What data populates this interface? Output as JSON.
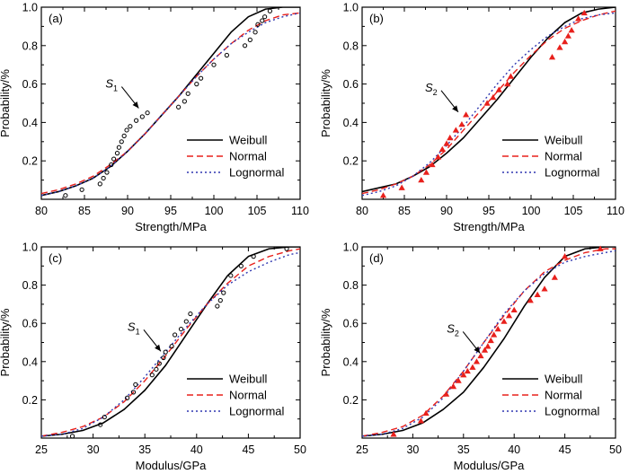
{
  "chart_data": [
    {
      "type": "line",
      "panel_label": "(a)",
      "xlabel": "Strength/MPa",
      "ylabel": "Probability/%",
      "xlim": [
        80,
        110
      ],
      "ylim": [
        0,
        1.0
      ],
      "x_ticks": [
        80,
        85,
        90,
        95,
        100,
        105,
        110
      ],
      "y_ticks": [
        0.2,
        0.4,
        0.6,
        0.8,
        1.0
      ],
      "legend_position": "bottom-right",
      "annotation": {
        "text": "S",
        "subscript": "1",
        "x": 91.6,
        "y": 0.46
      },
      "series": [
        {
          "name": "Weibull",
          "color": "#000000",
          "style": "solid",
          "x": [
            80,
            82,
            84,
            86,
            88,
            90,
            92,
            94,
            96,
            98,
            100,
            102,
            104,
            106,
            108,
            110
          ],
          "y": [
            0.02,
            0.04,
            0.07,
            0.11,
            0.17,
            0.25,
            0.34,
            0.44,
            0.54,
            0.65,
            0.76,
            0.87,
            0.95,
            0.99,
            1.0,
            1.0
          ]
        },
        {
          "name": "Normal",
          "color": "#e8201c",
          "style": "dashed",
          "x": [
            80,
            82,
            84,
            86,
            88,
            90,
            92,
            94,
            96,
            98,
            100,
            102,
            104,
            106,
            108,
            110
          ],
          "y": [
            0.03,
            0.05,
            0.08,
            0.12,
            0.18,
            0.25,
            0.34,
            0.44,
            0.54,
            0.64,
            0.73,
            0.81,
            0.88,
            0.93,
            0.96,
            0.97
          ]
        },
        {
          "name": "Lognormal",
          "color": "#2f37b0",
          "style": "dotted",
          "x": [
            80,
            82,
            84,
            86,
            88,
            90,
            92,
            94,
            96,
            98,
            100,
            102,
            104,
            106,
            108,
            110
          ],
          "y": [
            0.02,
            0.04,
            0.07,
            0.11,
            0.17,
            0.25,
            0.34,
            0.44,
            0.54,
            0.64,
            0.73,
            0.81,
            0.87,
            0.92,
            0.95,
            0.97
          ]
        }
      ],
      "points": {
        "marker": "circle",
        "color": "#000000",
        "x": [
          82.8,
          84.7,
          86.8,
          87.2,
          87.6,
          88.1,
          88.4,
          88.8,
          89.0,
          89.3,
          89.6,
          89.9,
          90.3,
          91.0,
          91.7,
          92.3,
          95.9,
          96.6,
          97.0,
          98.0,
          98.5,
          100.0,
          101.5,
          103.6,
          104.2,
          104.8,
          105.1,
          105.6,
          105.9,
          106.5
        ],
        "y": [
          0.02,
          0.05,
          0.08,
          0.11,
          0.14,
          0.18,
          0.21,
          0.24,
          0.27,
          0.3,
          0.33,
          0.36,
          0.38,
          0.41,
          0.43,
          0.45,
          0.48,
          0.51,
          0.55,
          0.6,
          0.63,
          0.7,
          0.75,
          0.8,
          0.83,
          0.87,
          0.91,
          0.93,
          0.95,
          0.98
        ]
      }
    },
    {
      "type": "line",
      "panel_label": "(b)",
      "xlabel": "Strength/MPa",
      "ylabel": "Probability/%",
      "xlim": [
        80,
        110
      ],
      "ylim": [
        0,
        1.0
      ],
      "x_ticks": [
        80,
        85,
        90,
        95,
        100,
        105,
        110
      ],
      "y_ticks": [
        0.2,
        0.4,
        0.6,
        0.8,
        1.0
      ],
      "legend_position": "bottom-right",
      "annotation": {
        "text": "S",
        "subscript": "2",
        "x": 91.7,
        "y": 0.44
      },
      "series": [
        {
          "name": "Weibull",
          "color": "#000000",
          "style": "solid",
          "x": [
            80,
            82,
            84,
            86,
            88,
            90,
            92,
            94,
            96,
            98,
            100,
            102,
            104,
            106,
            108,
            110
          ],
          "y": [
            0.04,
            0.06,
            0.08,
            0.12,
            0.17,
            0.24,
            0.32,
            0.42,
            0.52,
            0.63,
            0.74,
            0.84,
            0.92,
            0.97,
            0.99,
            1.0
          ]
        },
        {
          "name": "Normal",
          "color": "#e8201c",
          "style": "dashed",
          "x": [
            80,
            82,
            84,
            86,
            88,
            90,
            92,
            94,
            96,
            98,
            100,
            102,
            104,
            106,
            108,
            110
          ],
          "y": [
            0.03,
            0.05,
            0.08,
            0.12,
            0.18,
            0.26,
            0.36,
            0.46,
            0.56,
            0.66,
            0.75,
            0.83,
            0.89,
            0.93,
            0.96,
            0.98
          ]
        },
        {
          "name": "Lognormal",
          "color": "#2f37b0",
          "style": "dotted",
          "x": [
            80,
            82,
            84,
            86,
            88,
            90,
            92,
            94,
            96,
            98,
            100,
            102,
            104,
            106,
            108,
            110
          ],
          "y": [
            0.02,
            0.04,
            0.07,
            0.12,
            0.19,
            0.28,
            0.38,
            0.49,
            0.6,
            0.7,
            0.78,
            0.85,
            0.9,
            0.94,
            0.96,
            0.97
          ]
        }
      ],
      "points": {
        "marker": "triangle",
        "color": "#e8201c",
        "x": [
          82.5,
          84.7,
          87.0,
          87.6,
          88.3,
          89.0,
          89.5,
          90.0,
          90.4,
          91.1,
          91.8,
          92.3,
          94.8,
          95.5,
          96.2,
          97.2,
          97.6,
          102.5,
          103.4,
          104.0,
          104.4,
          104.8,
          105.6,
          106.3
        ],
        "y": [
          0.02,
          0.06,
          0.1,
          0.14,
          0.18,
          0.22,
          0.26,
          0.29,
          0.32,
          0.36,
          0.39,
          0.44,
          0.5,
          0.53,
          0.57,
          0.6,
          0.64,
          0.74,
          0.79,
          0.82,
          0.85,
          0.88,
          0.94,
          0.97
        ]
      }
    },
    {
      "type": "line",
      "panel_label": "(c)",
      "xlabel": "Modulus/GPa",
      "ylabel": "Probability/%",
      "xlim": [
        25,
        50
      ],
      "ylim": [
        0,
        1.0
      ],
      "x_ticks": [
        25,
        30,
        35,
        40,
        45,
        50
      ],
      "y_ticks": [
        0.2,
        0.4,
        0.6,
        0.8,
        1.0
      ],
      "legend_position": "bottom-right",
      "annotation": {
        "text": "S",
        "subscript": "1",
        "x": 36.8,
        "y": 0.44
      },
      "series": [
        {
          "name": "Weibull",
          "color": "#000000",
          "style": "solid",
          "x": [
            25,
            27,
            29,
            31,
            33,
            35,
            37,
            39,
            41,
            43,
            45,
            47,
            49,
            50
          ],
          "y": [
            0.01,
            0.02,
            0.04,
            0.08,
            0.15,
            0.25,
            0.38,
            0.54,
            0.7,
            0.85,
            0.95,
            0.99,
            1.0,
            1.0
          ]
        },
        {
          "name": "Normal",
          "color": "#e8201c",
          "style": "dashed",
          "x": [
            25,
            27,
            29,
            31,
            33,
            35,
            37,
            39,
            41,
            43,
            45,
            47,
            49,
            50
          ],
          "y": [
            0.01,
            0.03,
            0.06,
            0.11,
            0.19,
            0.3,
            0.43,
            0.57,
            0.7,
            0.81,
            0.9,
            0.95,
            0.98,
            0.99
          ]
        },
        {
          "name": "Lognormal",
          "color": "#2f37b0",
          "style": "dotted",
          "x": [
            25,
            27,
            29,
            31,
            33,
            35,
            37,
            39,
            41,
            43,
            45,
            47,
            49,
            50
          ],
          "y": [
            0.01,
            0.02,
            0.05,
            0.11,
            0.2,
            0.32,
            0.45,
            0.58,
            0.7,
            0.8,
            0.87,
            0.92,
            0.96,
            0.97
          ]
        }
      ],
      "points": {
        "marker": "circle",
        "color": "#000000",
        "x": [
          28.0,
          30.7,
          31.1,
          33.3,
          33.9,
          34.1,
          35.7,
          36.1,
          36.4,
          36.8,
          37.0,
          37.6,
          37.9,
          38.5,
          39.0,
          39.4,
          42.0,
          42.3,
          42.6,
          43.3,
          44.3,
          45.5,
          48.7
        ],
        "y": [
          0.01,
          0.07,
          0.11,
          0.21,
          0.24,
          0.28,
          0.33,
          0.36,
          0.39,
          0.42,
          0.45,
          0.48,
          0.54,
          0.57,
          0.61,
          0.65,
          0.69,
          0.72,
          0.76,
          0.85,
          0.9,
          0.95,
          0.99
        ]
      }
    },
    {
      "type": "line",
      "panel_label": "(d)",
      "xlabel": "Modulus/GPa",
      "ylabel": "Probability/%",
      "xlim": [
        25,
        50
      ],
      "ylim": [
        0,
        1.0
      ],
      "x_ticks": [
        25,
        30,
        35,
        40,
        45,
        50
      ],
      "y_ticks": [
        0.2,
        0.4,
        0.6,
        0.8,
        1.0
      ],
      "legend_position": "bottom-right",
      "annotation": {
        "text": "S",
        "subscript": "2",
        "x": 36.9,
        "y": 0.43
      },
      "series": [
        {
          "name": "Weibull",
          "color": "#000000",
          "style": "solid",
          "x": [
            25,
            27,
            29,
            31,
            33,
            35,
            37,
            39,
            41,
            43,
            45,
            47,
            49,
            50
          ],
          "y": [
            0.01,
            0.02,
            0.04,
            0.08,
            0.15,
            0.24,
            0.37,
            0.52,
            0.69,
            0.84,
            0.95,
            0.99,
            1.0,
            1.0
          ]
        },
        {
          "name": "Normal",
          "color": "#e8201c",
          "style": "dashed",
          "x": [
            25,
            27,
            29,
            31,
            33,
            35,
            37,
            39,
            41,
            43,
            45,
            47,
            49,
            50
          ],
          "y": [
            0.01,
            0.03,
            0.06,
            0.12,
            0.22,
            0.35,
            0.5,
            0.64,
            0.77,
            0.87,
            0.93,
            0.97,
            0.99,
            0.99
          ]
        },
        {
          "name": "Lognormal",
          "color": "#2f37b0",
          "style": "dotted",
          "x": [
            25,
            27,
            29,
            31,
            33,
            35,
            37,
            39,
            41,
            43,
            45,
            47,
            49,
            50
          ],
          "y": [
            0.01,
            0.02,
            0.05,
            0.11,
            0.21,
            0.35,
            0.5,
            0.65,
            0.77,
            0.86,
            0.92,
            0.95,
            0.97,
            0.98
          ]
        }
      ],
      "points": {
        "marker": "triangle",
        "color": "#e8201c",
        "x": [
          28.1,
          30.8,
          31.3,
          33.3,
          34.0,
          34.5,
          35.0,
          35.4,
          35.9,
          36.3,
          36.7,
          37.1,
          37.4,
          37.7,
          38.0,
          38.4,
          39.0,
          39.5,
          40.0,
          41.6,
          42.3,
          43.0,
          44.0,
          45.0,
          48.5
        ],
        "y": [
          0.02,
          0.09,
          0.13,
          0.23,
          0.27,
          0.3,
          0.33,
          0.35,
          0.37,
          0.4,
          0.43,
          0.46,
          0.48,
          0.51,
          0.54,
          0.57,
          0.61,
          0.64,
          0.67,
          0.72,
          0.75,
          0.78,
          0.84,
          0.95,
          0.99
        ]
      }
    }
  ]
}
